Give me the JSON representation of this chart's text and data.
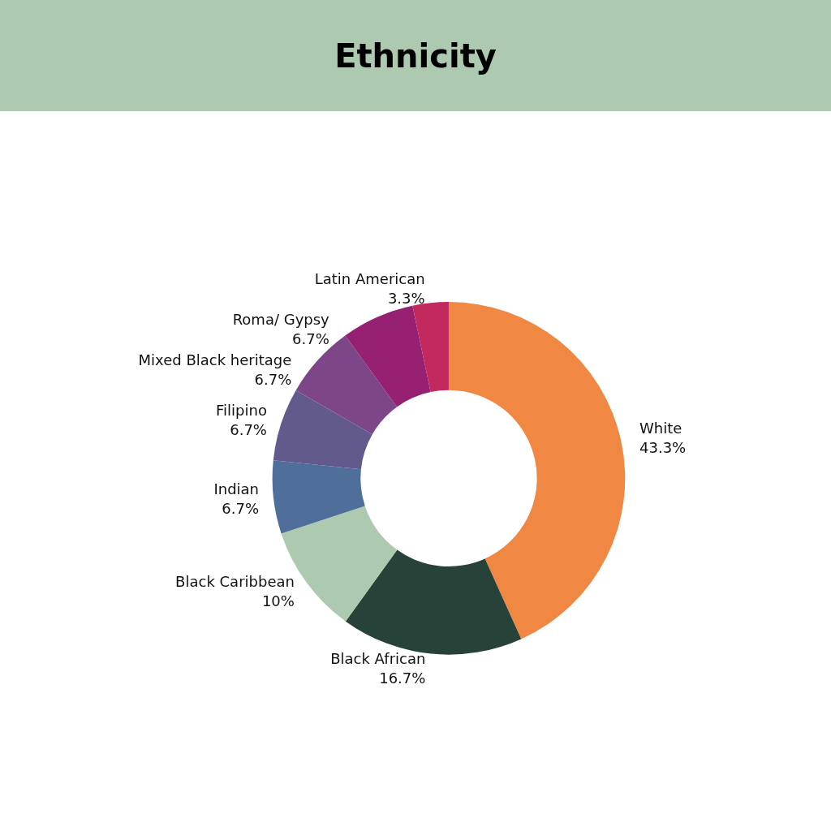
{
  "chart_data": {
    "type": "donut",
    "title": "Ethnicity",
    "categories": [
      "White",
      "Black African",
      "Black Caribbean",
      "Indian",
      "Filipino",
      "Mixed Black heritage",
      "Roma/ Gypsy",
      "Latin American"
    ],
    "values": [
      43.3,
      16.7,
      10,
      6.7,
      6.7,
      6.7,
      6.7,
      3.3
    ],
    "value_labels": [
      "43.3%",
      "16.7%",
      "10%",
      "6.7%",
      "6.7%",
      "6.7%",
      "6.7%",
      "3.3%"
    ],
    "colors": [
      "#f08743",
      "#274238",
      "#adcab0",
      "#4f6f9a",
      "#625a8c",
      "#7d4689",
      "#962071",
      "#c2295e"
    ]
  }
}
